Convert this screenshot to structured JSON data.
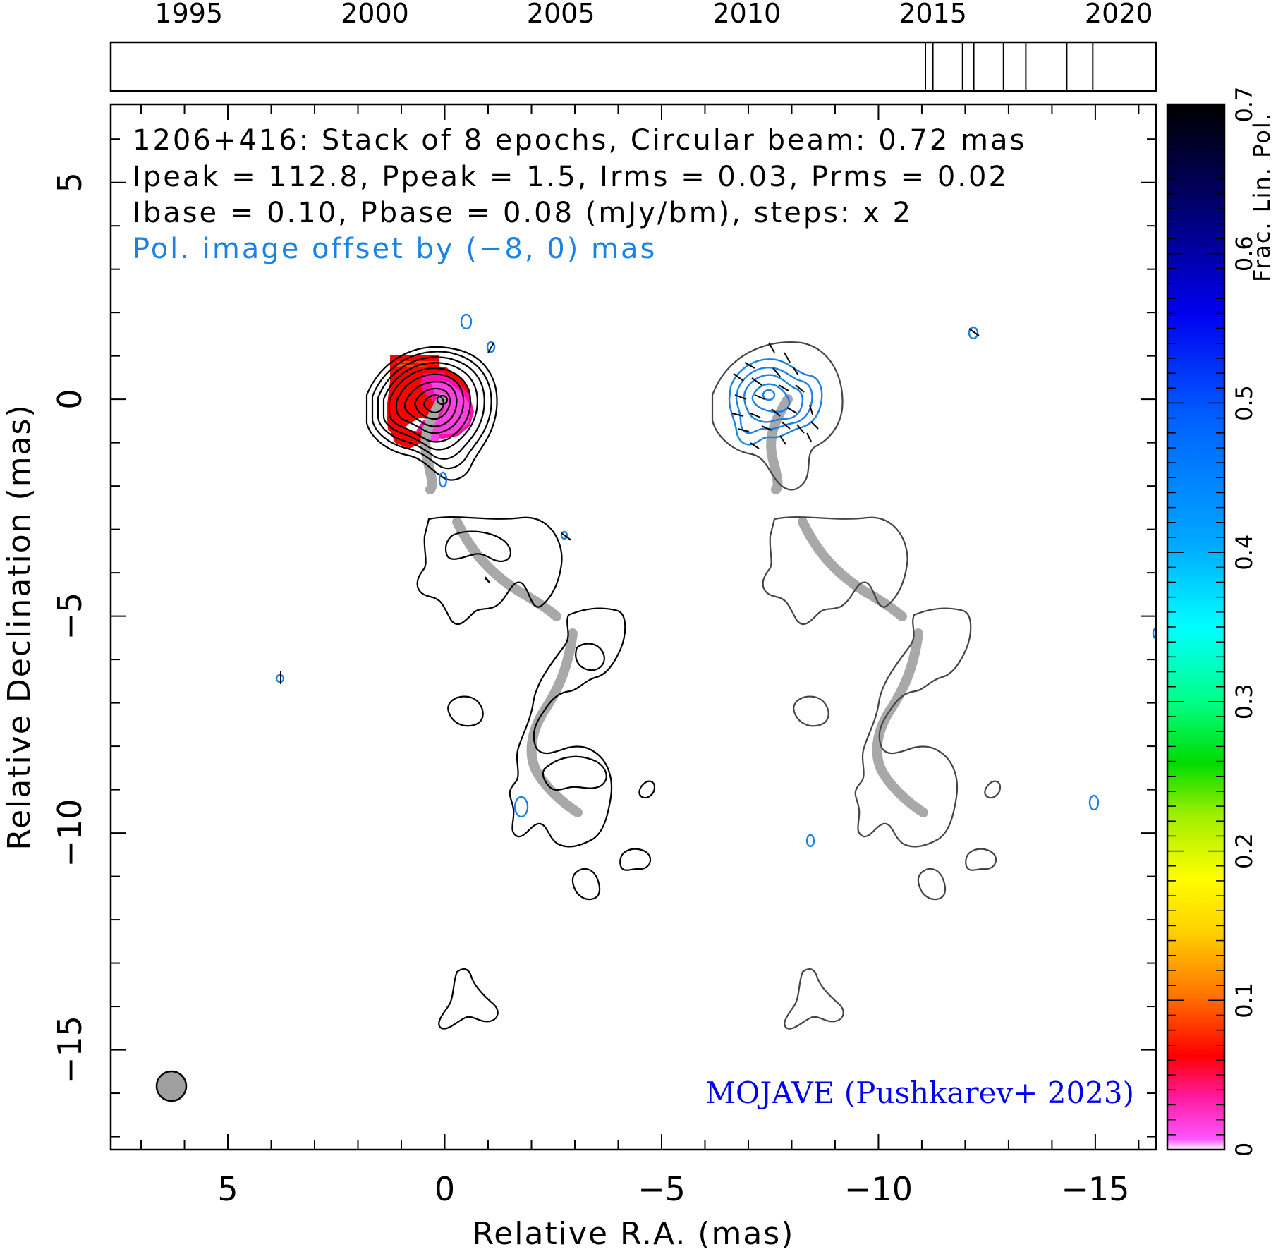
{
  "chart_data": {
    "type": "contour_map",
    "source": "1206+416",
    "header_lines": [
      "1206+416: Stack of 8 epochs, Circular beam: 0.72 mas",
      "Ipeak = 112.8, Ppeak = 1.5, Irms = 0.03, Prms = 0.02",
      "Ibase = 0.10, Pbase = 0.08 (mJy/bm), steps: x 2"
    ],
    "offset_note": "Pol. image offset by (−8, 0) mas",
    "credit": "MOJAVE (Pushkarev+ 2023)",
    "xlabel": "Relative R.A. (mas)",
    "ylabel": "Relative Declination (mas)",
    "colorbar_label": "Frac. Lin. Pol.",
    "xlim": [
      7.7,
      -16.4
    ],
    "ylim": [
      -17.3,
      6.8
    ],
    "x_tick_labels": [
      {
        "value": 5,
        "label": "5"
      },
      {
        "value": 0,
        "label": "0"
      },
      {
        "value": -5,
        "label": "−5"
      },
      {
        "value": -10,
        "label": "−10"
      },
      {
        "value": -15,
        "label": "−15"
      }
    ],
    "y_tick_labels": [
      {
        "value": 5,
        "label": "5"
      },
      {
        "value": 0,
        "label": "0"
      },
      {
        "value": -5,
        "label": "−5"
      },
      {
        "value": -10,
        "label": "−10"
      },
      {
        "value": -15,
        "label": "−15"
      }
    ],
    "colorbar_range": [
      0,
      0.7
    ],
    "colorbar_ticks": [
      {
        "value": 0,
        "label": "0"
      },
      {
        "value": 0.1,
        "label": "0.1"
      },
      {
        "value": 0.2,
        "label": "0.2"
      },
      {
        "value": 0.3,
        "label": "0.3"
      },
      {
        "value": 0.4,
        "label": "0.4"
      },
      {
        "value": 0.5,
        "label": "0.5"
      },
      {
        "value": 0.6,
        "label": "0.6"
      },
      {
        "value": 0.7,
        "label": "0.7"
      }
    ],
    "timeline_range": [
      1992.9,
      2021.0
    ],
    "timeline_ticks": [
      {
        "value": 1995,
        "label": "1995"
      },
      {
        "value": 2000,
        "label": "2000"
      },
      {
        "value": 2005,
        "label": "2005"
      },
      {
        "value": 2010,
        "label": "2010"
      },
      {
        "value": 2015,
        "label": "2015"
      },
      {
        "value": 2020,
        "label": "2020"
      }
    ],
    "epochs": [
      2014.8,
      2015.0,
      2015.8,
      2016.1,
      2016.9,
      2017.5,
      2018.6,
      2019.3
    ],
    "beam_diameter_mas": 0.72,
    "pol_offset_mas": [
      -8,
      0
    ],
    "colors": {
      "total_intensity_contour": "#000000",
      "pol_contour": "#1a82e6",
      "ridge_line": "#a8a8a8",
      "credit_text": "#0000ee",
      "beam_fill": "#a0a0a0"
    }
  }
}
